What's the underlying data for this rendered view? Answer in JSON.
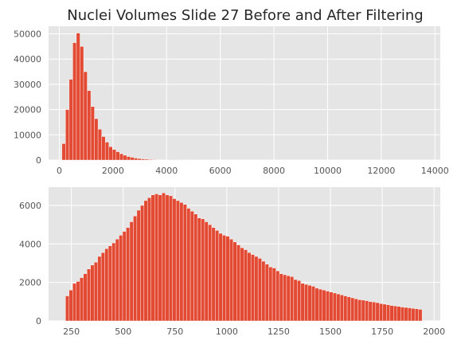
{
  "chart_data": [
    {
      "type": "bar",
      "title": "Nuclei Volumes Slide 27 Before and After Filtering",
      "xlim": [
        -400,
        14200
      ],
      "ylim": [
        0,
        53000
      ],
      "xticks": [
        0,
        2000,
        4000,
        6000,
        8000,
        10000,
        12000,
        14000
      ],
      "yticks": [
        0,
        10000,
        20000,
        30000,
        40000,
        50000
      ],
      "bin_start": 100,
      "bin_width": 134.3,
      "grid": true,
      "color": "#e24a33",
      "values": [
        6500,
        20000,
        32000,
        46500,
        50300,
        45000,
        35000,
        27500,
        21200,
        16400,
        12200,
        9300,
        7100,
        5300,
        4200,
        3300,
        2500,
        1900,
        1400,
        1100,
        800,
        600,
        450,
        350,
        250,
        180,
        130,
        100,
        80,
        60,
        45,
        35,
        28,
        22,
        17,
        13,
        10,
        8,
        6,
        5,
        4,
        3,
        3,
        2,
        2,
        2,
        1,
        1,
        1,
        1,
        1,
        1,
        1,
        1,
        1,
        1,
        1,
        1,
        1,
        1,
        1,
        1,
        1,
        1,
        1,
        1,
        1,
        1,
        1,
        1,
        1,
        1,
        1,
        1,
        1,
        1,
        1,
        1,
        1,
        1,
        1,
        1,
        1,
        1,
        1,
        1,
        1,
        1,
        1,
        1,
        1,
        1,
        1,
        1,
        1,
        1,
        1,
        1,
        1,
        1
      ]
    },
    {
      "type": "bar",
      "xlim": [
        140,
        2030
      ],
      "ylim": [
        0,
        6950
      ],
      "xticks": [
        250,
        500,
        750,
        1000,
        1250,
        1500,
        1750,
        2000
      ],
      "yticks": [
        0,
        2000,
        4000,
        6000
      ],
      "bin_start": 222,
      "bin_width": 17.2,
      "grid": true,
      "color": "#e24a33",
      "values": [
        1300,
        1600,
        1950,
        2050,
        2250,
        2450,
        2700,
        2900,
        3050,
        3350,
        3550,
        3750,
        3900,
        4050,
        4250,
        4450,
        4650,
        4850,
        5150,
        5450,
        5750,
        6000,
        6250,
        6400,
        6550,
        6600,
        6550,
        6650,
        6550,
        6500,
        6350,
        6250,
        6150,
        6050,
        5850,
        5700,
        5550,
        5350,
        5300,
        5150,
        5000,
        4850,
        4700,
        4550,
        4450,
        4400,
        4250,
        4100,
        3950,
        3800,
        3700,
        3550,
        3450,
        3350,
        3250,
        3100,
        2950,
        2800,
        2750,
        2600,
        2450,
        2400,
        2350,
        2300,
        2150,
        2100,
        1950,
        1900,
        1850,
        1800,
        1700,
        1650,
        1600,
        1550,
        1500,
        1450,
        1400,
        1350,
        1300,
        1250,
        1200,
        1150,
        1100,
        1080,
        1050,
        1000,
        980,
        950,
        900,
        870,
        840,
        800,
        780,
        750,
        720,
        700,
        680,
        650,
        630,
        600
      ]
    }
  ]
}
